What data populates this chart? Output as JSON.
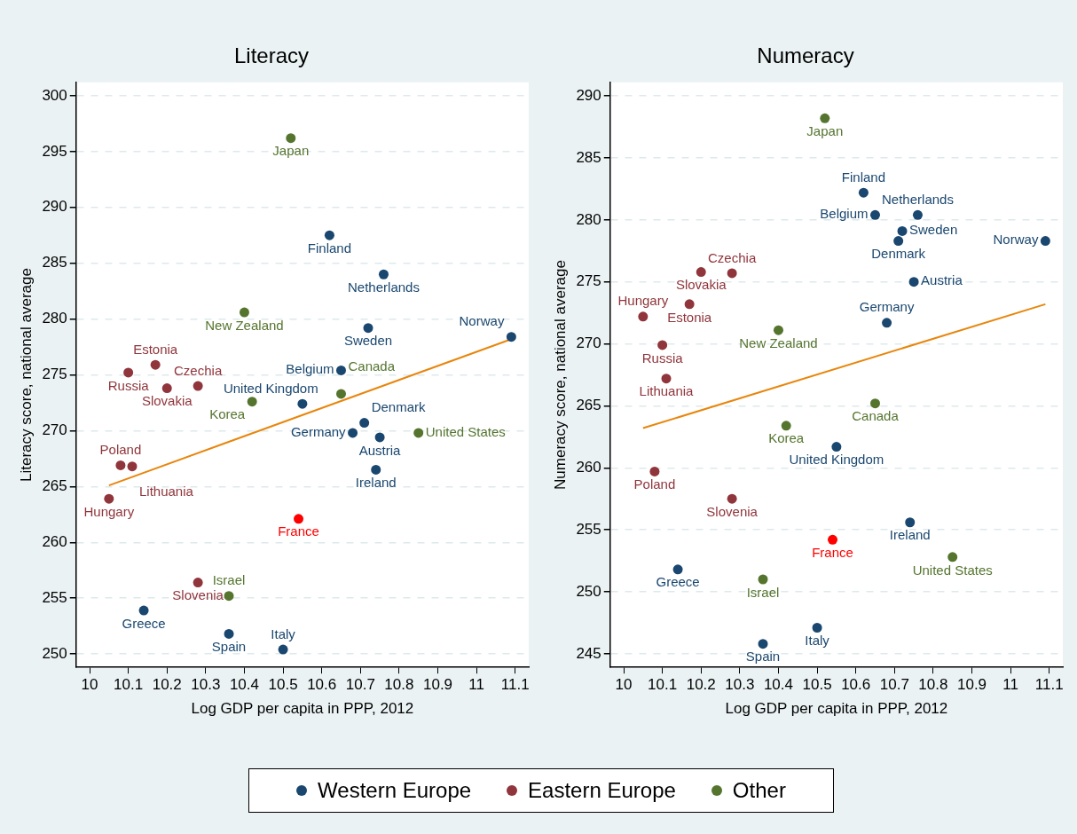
{
  "chart_data": [
    {
      "type": "scatter",
      "title": "Literacy",
      "xlabel": "Log GDP per capita in PPP, 2012",
      "ylabel": "Literacy score, national average",
      "xlim": [
        9.965,
        11.135
      ],
      "ylim": [
        248.8,
        301.2
      ],
      "xticks": [
        10,
        10.1,
        10.2,
        10.3,
        10.4,
        10.5,
        10.6,
        10.7,
        10.8,
        10.9,
        11,
        11.1
      ],
      "yticks": [
        250,
        255,
        260,
        265,
        270,
        275,
        280,
        285,
        290,
        295,
        300
      ],
      "grid": "y",
      "legend": "bottom",
      "marker": "circle",
      "series": [
        {
          "name": "Western Europe",
          "color": "#1a476f",
          "x": [
            10.62,
            10.76,
            10.72,
            11.09,
            10.65,
            10.55,
            10.71,
            10.68,
            10.75,
            10.74,
            10.14,
            10.36,
            10.5
          ],
          "values": [
            287.5,
            284.0,
            279.2,
            278.4,
            275.4,
            272.4,
            270.7,
            269.8,
            269.4,
            266.5,
            253.9,
            251.8,
            250.4
          ]
        },
        {
          "name": "Eastern Europe",
          "color": "#90353b",
          "x": [
            10.1,
            10.17,
            10.2,
            10.28,
            10.08,
            10.11,
            10.05,
            10.28
          ],
          "values": [
            275.2,
            275.9,
            273.8,
            274.0,
            266.9,
            266.8,
            263.9,
            256.4
          ]
        },
        {
          "name": "Other",
          "color": "#55752f",
          "x": [
            10.52,
            10.4,
            10.42,
            10.65,
            10.85,
            10.36
          ],
          "values": [
            296.2,
            280.6,
            272.6,
            273.3,
            269.8,
            255.2
          ]
        },
        {
          "color": "#ff0000",
          "x": [
            10.54
          ],
          "values": [
            262.1
          ]
        },
        {
          "type": "line",
          "marker": "none",
          "color": "#e8860c",
          "x": [
            10.05,
            11.09
          ],
          "values": [
            265.1,
            278.2
          ]
        }
      ],
      "annotations": [
        {
          "text": "Finland",
          "x": 10.62,
          "y": 287.5
        },
        {
          "text": "Netherlands",
          "x": 10.76,
          "y": 284.0
        },
        {
          "text": "Sweden",
          "x": 10.72,
          "y": 279.2
        },
        {
          "text": "Norway",
          "x": 11.09,
          "y": 278.4
        },
        {
          "text": "Belgium",
          "x": 10.65,
          "y": 275.4
        },
        {
          "text": "United Kingdom",
          "x": 10.55,
          "y": 272.4
        },
        {
          "text": "Denmark",
          "x": 10.71,
          "y": 270.7
        },
        {
          "text": "Germany",
          "x": 10.68,
          "y": 269.8
        },
        {
          "text": "Austria",
          "x": 10.75,
          "y": 269.4
        },
        {
          "text": "Ireland",
          "x": 10.74,
          "y": 266.5
        },
        {
          "text": "Greece",
          "x": 10.14,
          "y": 253.9
        },
        {
          "text": "Spain",
          "x": 10.36,
          "y": 251.8
        },
        {
          "text": "Italy",
          "x": 10.5,
          "y": 250.4
        },
        {
          "text": "France",
          "x": 10.54,
          "y": 262.1
        },
        {
          "text": "Russia",
          "x": 10.1,
          "y": 275.2
        },
        {
          "text": "Estonia",
          "x": 10.17,
          "y": 275.9
        },
        {
          "text": "Slovakia",
          "x": 10.2,
          "y": 273.8
        },
        {
          "text": "Czechia",
          "x": 10.28,
          "y": 274.0
        },
        {
          "text": "Poland",
          "x": 10.08,
          "y": 266.9
        },
        {
          "text": "Lithuania",
          "x": 10.11,
          "y": 266.8
        },
        {
          "text": "Hungary",
          "x": 10.05,
          "y": 263.9
        },
        {
          "text": "Slovenia",
          "x": 10.28,
          "y": 256.4
        },
        {
          "text": "Japan",
          "x": 10.52,
          "y": 296.2
        },
        {
          "text": "New Zealand",
          "x": 10.4,
          "y": 280.6
        },
        {
          "text": "Korea",
          "x": 10.42,
          "y": 272.6
        },
        {
          "text": "Canada",
          "x": 10.65,
          "y": 273.3
        },
        {
          "text": "United States",
          "x": 10.85,
          "y": 269.8
        },
        {
          "text": "Israel",
          "x": 10.36,
          "y": 255.2
        }
      ]
    },
    {
      "type": "scatter",
      "title": "Numeracy",
      "xlabel": "Log GDP per capita in PPP, 2012",
      "ylabel": "Numeracy score, national average",
      "xlim": [
        9.965,
        11.135
      ],
      "ylim": [
        243.9,
        291.1
      ],
      "xticks": [
        10,
        10.1,
        10.2,
        10.3,
        10.4,
        10.5,
        10.6,
        10.7,
        10.8,
        10.9,
        11,
        11.1
      ],
      "yticks": [
        245,
        250,
        255,
        260,
        265,
        270,
        275,
        280,
        285,
        290
      ],
      "grid": "y",
      "legend": "bottom",
      "marker": "circle",
      "series": [
        {
          "name": "Western Europe",
          "color": "#1a476f",
          "x": [
            10.62,
            10.76,
            10.72,
            11.09,
            10.65,
            10.55,
            10.71,
            10.68,
            10.75,
            10.74,
            10.14,
            10.36,
            10.5
          ],
          "values": [
            282.2,
            280.4,
            279.1,
            278.3,
            280.4,
            261.7,
            278.3,
            271.7,
            275.0,
            255.6,
            251.8,
            245.8,
            247.1
          ]
        },
        {
          "name": "Eastern Europe",
          "color": "#90353b",
          "x": [
            10.1,
            10.17,
            10.2,
            10.28,
            10.08,
            10.11,
            10.05,
            10.28
          ],
          "values": [
            269.9,
            273.2,
            275.8,
            275.7,
            259.7,
            267.2,
            272.2,
            257.5
          ]
        },
        {
          "name": "Other",
          "color": "#55752f",
          "x": [
            10.52,
            10.4,
            10.42,
            10.65,
            10.85,
            10.36
          ],
          "values": [
            288.2,
            271.1,
            263.4,
            265.2,
            252.8,
            251.0
          ]
        },
        {
          "color": "#ff0000",
          "x": [
            10.54
          ],
          "values": [
            254.2
          ]
        },
        {
          "type": "line",
          "marker": "none",
          "color": "#e8860c",
          "x": [
            10.05,
            11.09
          ],
          "values": [
            263.2,
            273.2
          ]
        }
      ],
      "annotations": [
        {
          "text": "Finland",
          "x": 10.62,
          "y": 282.2
        },
        {
          "text": "Netherlands",
          "x": 10.76,
          "y": 280.4
        },
        {
          "text": "Sweden",
          "x": 10.72,
          "y": 279.1
        },
        {
          "text": "Norway",
          "x": 11.09,
          "y": 278.3
        },
        {
          "text": "Belgium",
          "x": 10.65,
          "y": 280.4
        },
        {
          "text": "United Kingdom",
          "x": 10.55,
          "y": 261.7
        },
        {
          "text": "Denmark",
          "x": 10.71,
          "y": 278.3
        },
        {
          "text": "Germany",
          "x": 10.68,
          "y": 271.7
        },
        {
          "text": "Austria",
          "x": 10.75,
          "y": 275.0
        },
        {
          "text": "Ireland",
          "x": 10.74,
          "y": 255.6
        },
        {
          "text": "Greece",
          "x": 10.14,
          "y": 251.8
        },
        {
          "text": "Spain",
          "x": 10.36,
          "y": 245.8
        },
        {
          "text": "Italy",
          "x": 10.5,
          "y": 247.1
        },
        {
          "text": "France",
          "x": 10.54,
          "y": 254.2
        },
        {
          "text": "Russia",
          "x": 10.1,
          "y": 269.9
        },
        {
          "text": "Estonia",
          "x": 10.17,
          "y": 273.2
        },
        {
          "text": "Slovakia",
          "x": 10.2,
          "y": 275.8
        },
        {
          "text": "Czechia",
          "x": 10.28,
          "y": 275.7
        },
        {
          "text": "Poland",
          "x": 10.08,
          "y": 259.7
        },
        {
          "text": "Lithuania",
          "x": 10.11,
          "y": 267.2
        },
        {
          "text": "Hungary",
          "x": 10.05,
          "y": 272.2
        },
        {
          "text": "Slovenia",
          "x": 10.28,
          "y": 257.5
        },
        {
          "text": "Japan",
          "x": 10.52,
          "y": 288.2
        },
        {
          "text": "New Zealand",
          "x": 10.4,
          "y": 271.1
        },
        {
          "text": "Korea",
          "x": 10.42,
          "y": 263.4
        },
        {
          "text": "Canada",
          "x": 10.65,
          "y": 265.2
        },
        {
          "text": "United States",
          "x": 10.85,
          "y": 252.8
        },
        {
          "text": "Israel",
          "x": 10.36,
          "y": 251.0
        }
      ]
    }
  ]
}
